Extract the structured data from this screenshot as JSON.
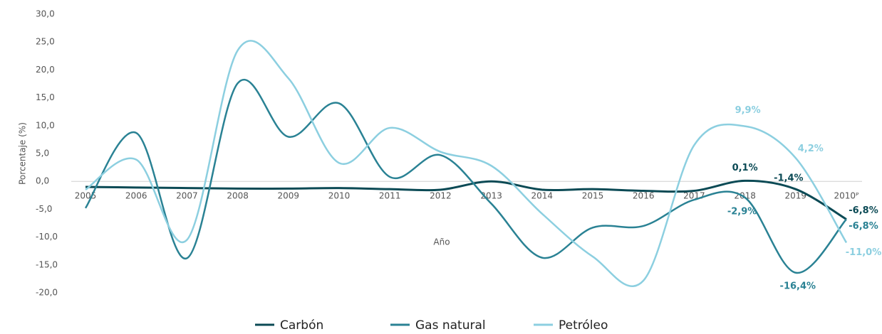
{
  "chart_data": {
    "type": "line",
    "x_label": "Año",
    "y_label": "Porcentaje (%)",
    "categories": [
      "2005",
      "2006",
      "2007",
      "2008",
      "2009",
      "2010",
      "2011",
      "2012",
      "2013",
      "2014",
      "2015",
      "2016",
      "2017",
      "2018",
      "2019",
      "2010ᴾ"
    ],
    "series": [
      {
        "name": "Carbón",
        "color": "#0b4a55",
        "values": [
          -1.0,
          -1.1,
          -1.2,
          -1.3,
          -1.3,
          -1.2,
          -1.4,
          -1.5,
          0.0,
          -1.5,
          -1.4,
          -1.7,
          -1.7,
          0.1,
          -1.4,
          -6.8
        ],
        "value_labels": [
          null,
          null,
          null,
          null,
          null,
          null,
          null,
          null,
          null,
          null,
          null,
          null,
          null,
          "0,1%",
          "-1,4%",
          "-6,8%"
        ]
      },
      {
        "name": "Gas natural",
        "color": "#2a8294",
        "values": [
          -4.8,
          8.7,
          -13.8,
          17.6,
          8.0,
          14.0,
          0.8,
          4.7,
          -4.0,
          -13.7,
          -8.3,
          -8.0,
          -3.3,
          -2.9,
          -16.4,
          -6.8
        ],
        "value_labels": [
          null,
          null,
          null,
          null,
          null,
          null,
          null,
          null,
          null,
          null,
          null,
          null,
          null,
          "-2,9%",
          "-16,4%",
          "-6,8%"
        ]
      },
      {
        "name": "Petróleo",
        "color": "#8ccfe0",
        "values": [
          -1.5,
          3.9,
          -10.5,
          23.5,
          18.5,
          3.3,
          9.6,
          5.3,
          2.8,
          -5.8,
          -13.5,
          -17.8,
          6.5,
          9.9,
          4.2,
          -11.0
        ],
        "value_labels": [
          null,
          null,
          null,
          null,
          null,
          null,
          null,
          null,
          null,
          null,
          null,
          null,
          null,
          "9,9%",
          "4,2%",
          "-11,0%"
        ]
      }
    ],
    "ylim": [
      -20,
      30
    ],
    "yticks": [
      {
        "value": -20,
        "label": "-20,0"
      },
      {
        "value": -15,
        "label": "-15,0"
      },
      {
        "value": -10,
        "label": "-10,0"
      },
      {
        "value": -5,
        "label": "-5,0"
      },
      {
        "value": 0,
        "label": "0,0"
      },
      {
        "value": 5,
        "label": "5,0"
      },
      {
        "value": 10,
        "label": "10,0"
      },
      {
        "value": 15,
        "label": "15,0"
      },
      {
        "value": 20,
        "label": "20,0"
      },
      {
        "value": 25,
        "label": "25,0"
      },
      {
        "value": 30,
        "label": "30,0"
      }
    ],
    "legend": "bottom"
  }
}
